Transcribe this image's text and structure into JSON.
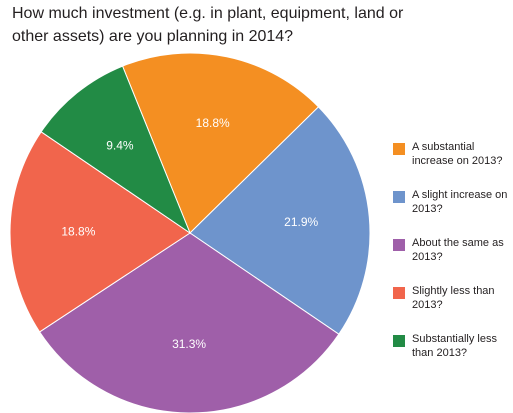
{
  "chart_data": {
    "type": "pie",
    "title": "How much investment (e.g. in plant, equipment, land or other assets) are you planning in 2014?",
    "slices": [
      {
        "label": "A substantial increase on 2013?",
        "value": 18.8,
        "display": "18.8%",
        "color": "#f48f22"
      },
      {
        "label": "A slight increase on 2013?",
        "value": 21.9,
        "display": "21.9%",
        "color": "#6e94cc"
      },
      {
        "label": "About the same as 2013?",
        "value": 31.3,
        "display": "31.3%",
        "color": "#9f5fa9"
      },
      {
        "label": "Slightly less than 2013?",
        "value": 18.8,
        "display": "18.8%",
        "color": "#f1654c"
      },
      {
        "label": "Substantially less than 2013?",
        "value": 9.4,
        "display": "9.4%",
        "color": "#228b45"
      }
    ],
    "legend_position": "right"
  }
}
